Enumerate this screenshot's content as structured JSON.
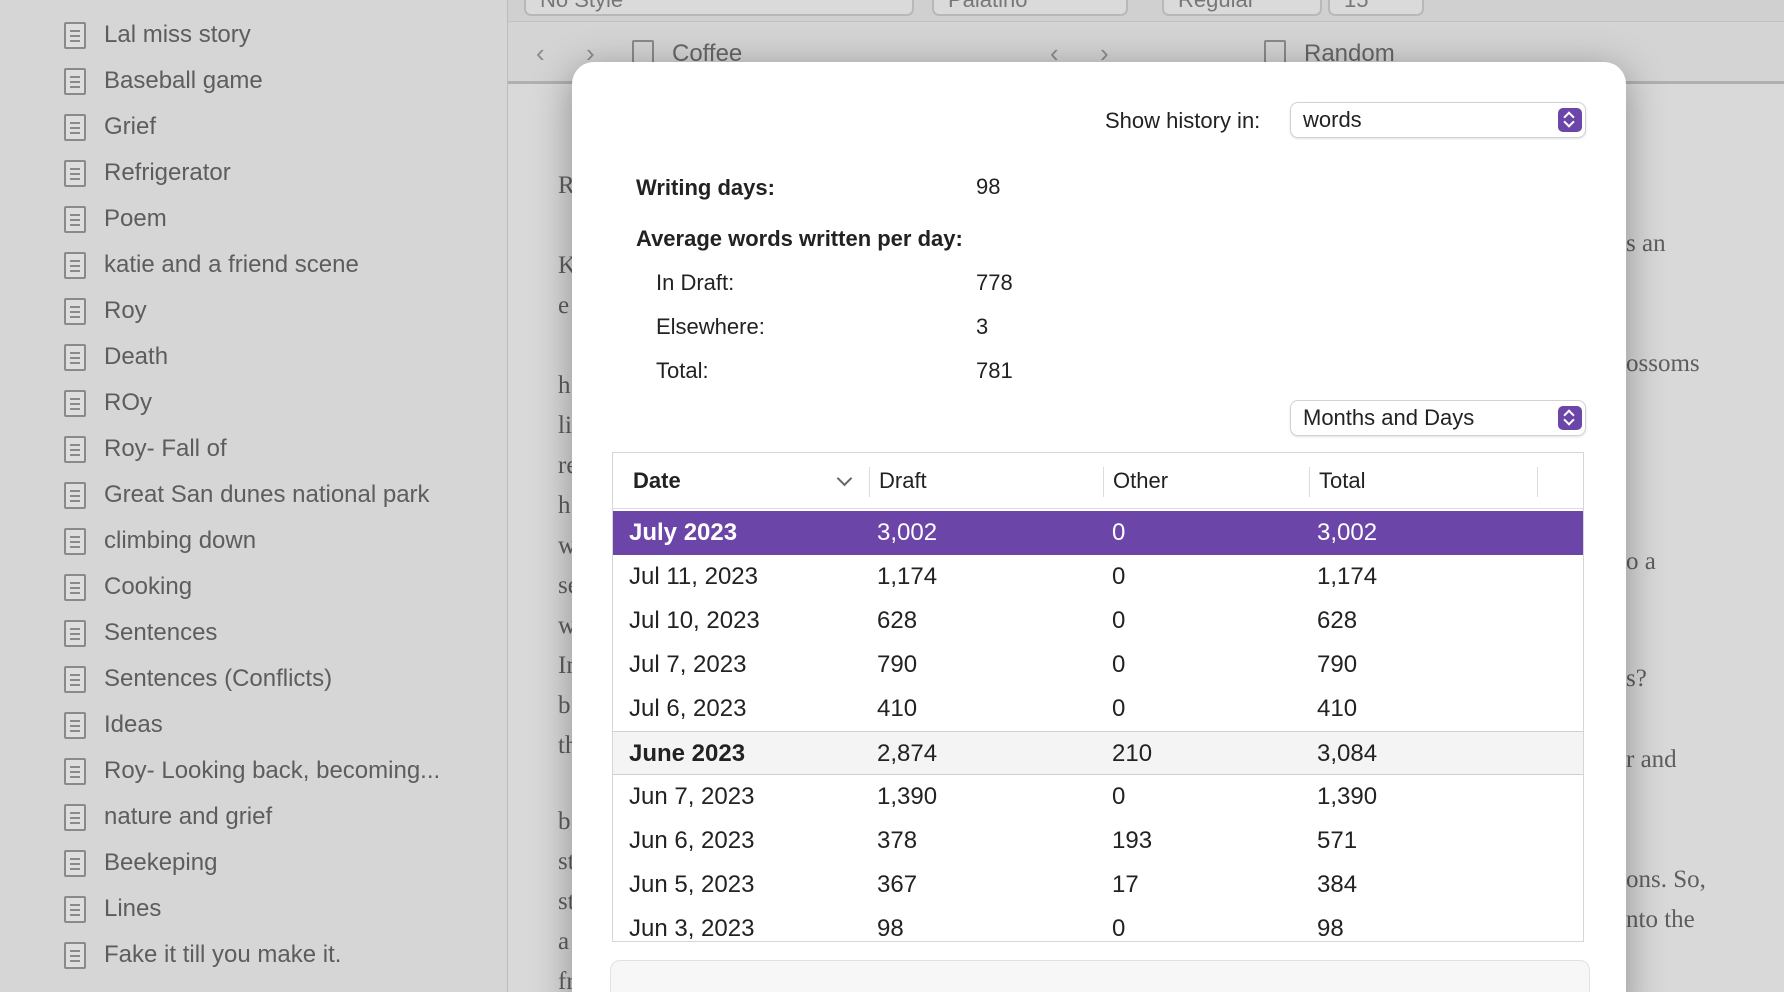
{
  "sidebar": {
    "items": [
      "Lal miss story",
      "Baseball game",
      "Grief",
      "Refrigerator",
      "Poem",
      "katie and a friend scene",
      "Roy",
      "Death",
      "ROy",
      "Roy- Fall of",
      "Great San dunes national park",
      "climbing down",
      "Cooking",
      "Sentences",
      "Sentences (Conflicts)",
      "Ideas",
      "Roy- Looking back, becoming...",
      "nature and grief",
      "Beekeping",
      "Lines",
      "Fake it till you make it."
    ]
  },
  "toolbar": {
    "style": "No Style",
    "font": "Palatino",
    "weight": "Regular",
    "size": "15"
  },
  "panes": {
    "left_title": "Coffee",
    "right_title": "Random"
  },
  "background_text": {
    "left_letters": [
      "R",
      "K",
      "e",
      "h",
      "li",
      "re",
      "h",
      "w",
      "se",
      "w",
      "In",
      "b",
      "th",
      "b",
      "st",
      "st",
      "a",
      "fr"
    ],
    "right_fragments": [
      "s an",
      "ossoms",
      "o a",
      "s?",
      "r and",
      "ons. So,",
      "nto the"
    ]
  },
  "dialog": {
    "show_history_label": "Show history in:",
    "show_history_value": "words",
    "writing_days_label": "Writing days:",
    "writing_days_value": "98",
    "avg_label": "Average words written per day:",
    "in_draft_label": "In Draft:",
    "in_draft_value": "778",
    "elsewhere_label": "Elsewhere:",
    "elsewhere_value": "3",
    "total_label": "Total:",
    "total_value": "781",
    "grouping_value": "Months and Days",
    "accent_color": "#6b46a8",
    "table": {
      "headers": [
        "Date",
        "Draft",
        "Other",
        "Total"
      ],
      "rows": [
        {
          "date": "July 2023",
          "draft": "3,002",
          "other": "0",
          "total": "3,002",
          "kind": "selected"
        },
        {
          "date": "Jul 11, 2023",
          "draft": "1,174",
          "other": "0",
          "total": "1,174",
          "kind": "day"
        },
        {
          "date": "Jul 10, 2023",
          "draft": "628",
          "other": "0",
          "total": "628",
          "kind": "day"
        },
        {
          "date": "Jul 7, 2023",
          "draft": "790",
          "other": "0",
          "total": "790",
          "kind": "day"
        },
        {
          "date": "Jul 6, 2023",
          "draft": "410",
          "other": "0",
          "total": "410",
          "kind": "day"
        },
        {
          "date": "June 2023",
          "draft": "2,874",
          "other": "210",
          "total": "3,084",
          "kind": "group"
        },
        {
          "date": "Jun 7, 2023",
          "draft": "1,390",
          "other": "0",
          "total": "1,390",
          "kind": "day"
        },
        {
          "date": "Jun 6, 2023",
          "draft": "378",
          "other": "193",
          "total": "571",
          "kind": "day"
        },
        {
          "date": "Jun 5, 2023",
          "draft": "367",
          "other": "17",
          "total": "384",
          "kind": "day"
        },
        {
          "date": "Jun 3, 2023",
          "draft": "98",
          "other": "0",
          "total": "98",
          "kind": "day"
        }
      ]
    }
  }
}
